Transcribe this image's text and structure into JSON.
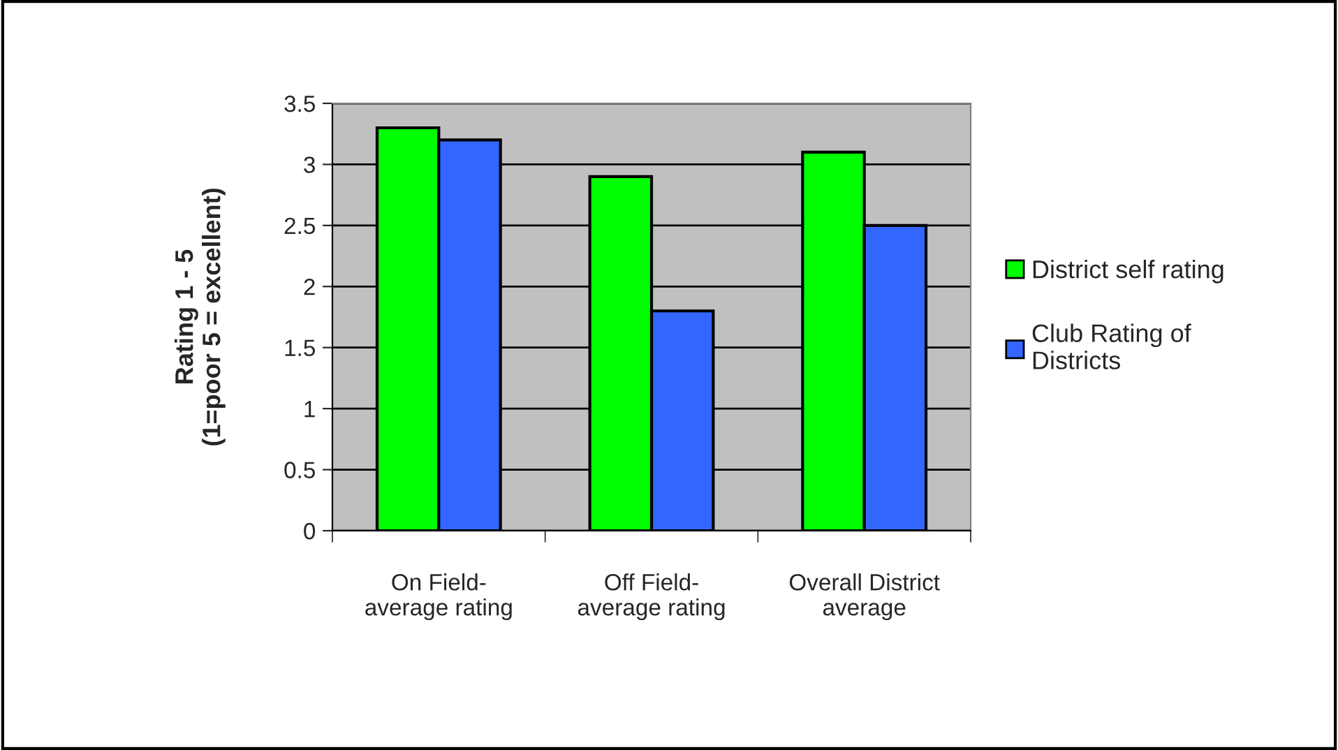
{
  "chart_data": {
    "type": "bar",
    "ylabel": "Rating 1 - 5\n(1=poor 5 = excellent)",
    "categories": [
      "On Field-\naverage rating",
      "Off Field-\naverage rating",
      "Overall District\naverage"
    ],
    "series": [
      {
        "name": "District self rating",
        "color": "#00ff00",
        "values": [
          3.3,
          2.9,
          3.1
        ]
      },
      {
        "name": "Club Rating of\nDistricts",
        "color": "#3366ff",
        "values": [
          3.2,
          1.8,
          2.5
        ]
      }
    ],
    "ylim": [
      0,
      3.5
    ],
    "yticks": [
      0,
      0.5,
      1,
      1.5,
      2,
      2.5,
      3,
      3.5
    ],
    "grid": "y",
    "legend": "right"
  }
}
